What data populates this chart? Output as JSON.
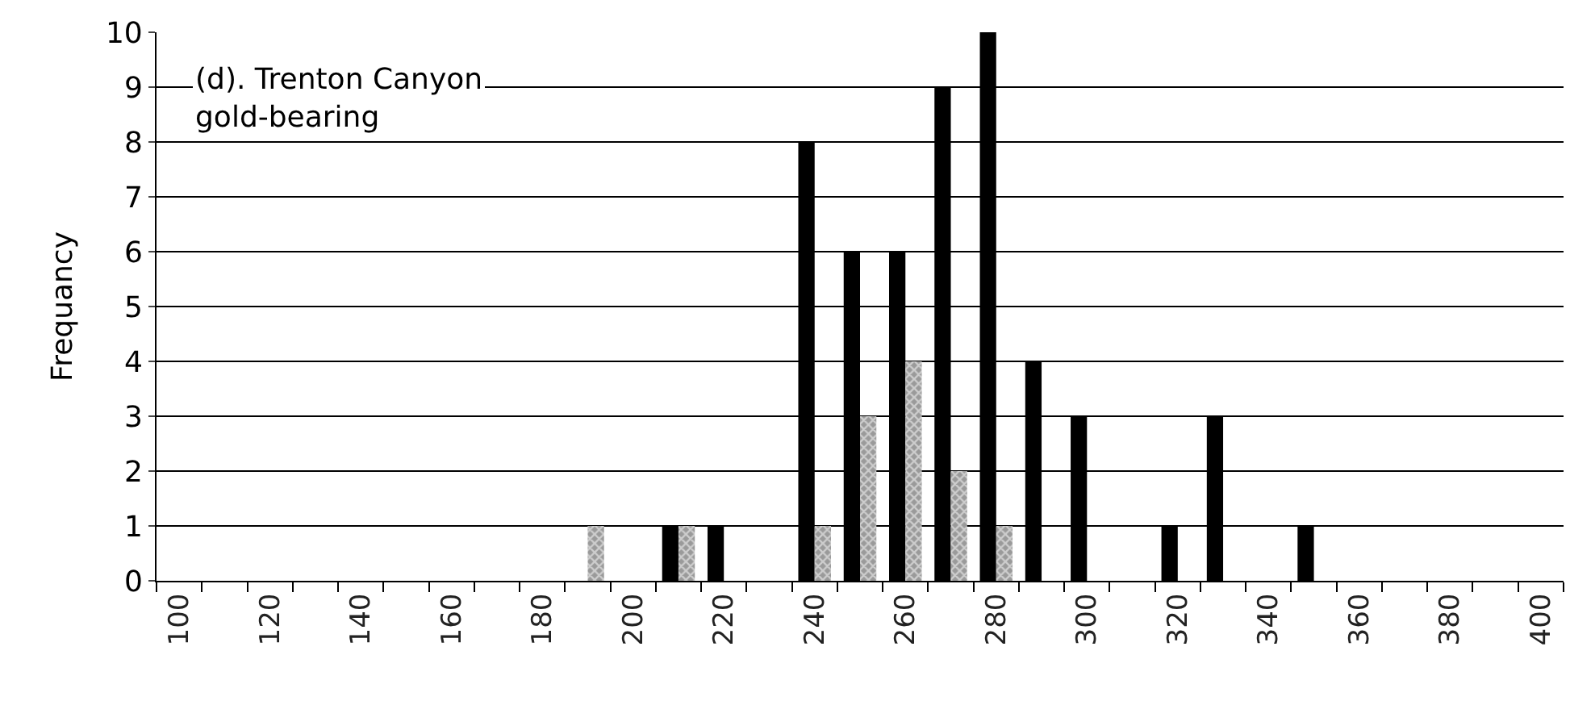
{
  "chart_data": {
    "type": "bar",
    "ylabel": "Frequancy",
    "annotations": [
      "(d). Trenton Canyon\ngold-bearing"
    ],
    "categories": [
      "100",
      null,
      "120",
      null,
      "140",
      null,
      "160",
      null,
      "180",
      null,
      "200",
      null,
      "220",
      null,
      "240",
      null,
      "260",
      null,
      "280",
      null,
      "300",
      null,
      "320",
      null,
      "340",
      null,
      "360",
      null,
      "380",
      null,
      "400"
    ],
    "series": [
      {
        "color": "#000000",
        "values": [
          0,
          0,
          0,
          0,
          0,
          0,
          0,
          0,
          0,
          0,
          0,
          1,
          1,
          0,
          8,
          6,
          6,
          9,
          10,
          4,
          3,
          0,
          1,
          3,
          0,
          1,
          0,
          0,
          0,
          0,
          0
        ]
      },
      {
        "color": "#9a9a9a",
        "values": [
          0,
          0,
          0,
          0,
          0,
          0,
          0,
          0,
          0,
          1,
          0,
          1,
          0,
          0,
          1,
          3,
          4,
          2,
          1,
          0,
          0,
          0,
          0,
          0,
          0,
          0,
          0,
          0,
          0,
          0,
          0
        ]
      }
    ],
    "ylim": [
      0,
      10
    ],
    "yticks": [
      0,
      1,
      2,
      3,
      4,
      5,
      6,
      7,
      8,
      9,
      10
    ],
    "grid": "y"
  }
}
